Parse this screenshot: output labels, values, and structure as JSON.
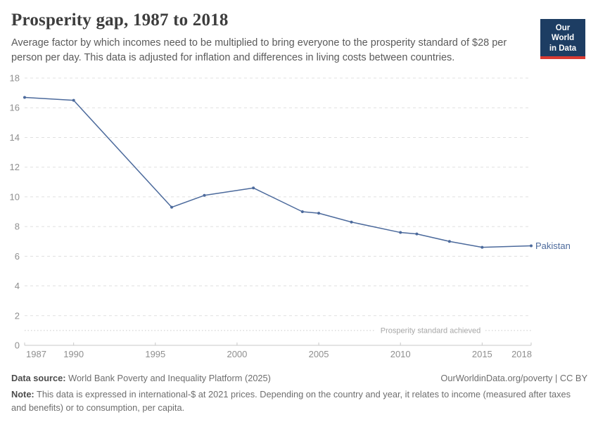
{
  "header": {
    "title": "Prosperity gap, 1987 to 2018",
    "subtitle": "Average factor by which incomes need to be multiplied to bring everyone to the prosperity standard of $28 per person per day. This data is adjusted for inflation and differences in living costs between countries."
  },
  "logo": {
    "line1": "Our World",
    "line2": "in Data",
    "bg_color": "#1d3d63",
    "accent_color": "#d93a32"
  },
  "chart_data": {
    "type": "line",
    "title": "Prosperity gap, 1987 to 2018",
    "xlabel": "",
    "ylabel": "",
    "x": [
      1987,
      1990,
      1996,
      1998,
      2001,
      2004,
      2005,
      2007,
      2010,
      2011,
      2013,
      2015,
      2018
    ],
    "series": [
      {
        "name": "Pakistan",
        "values": [
          16.7,
          16.5,
          9.3,
          10.1,
          10.6,
          9.0,
          8.9,
          8.3,
          7.6,
          7.5,
          7.0,
          6.6,
          6.7
        ],
        "color": "#4c6a9c"
      }
    ],
    "xlim": [
      1987,
      2018
    ],
    "ylim": [
      0,
      18
    ],
    "yticks": [
      0,
      2,
      4,
      6,
      8,
      10,
      12,
      14,
      16,
      18
    ],
    "xticks": [
      1987,
      1990,
      1995,
      2000,
      2005,
      2010,
      2015,
      2018
    ],
    "grid": "horizontal-dashed",
    "legend_position": "end-of-line-label",
    "annotation": {
      "label": "Prosperity standard achieved",
      "value": 1
    },
    "colors": {
      "gridline": "#e0e0e0",
      "axis": "#c8c8c8",
      "tick_label": "#8f8f8f",
      "annotation": "#a6a6a6"
    }
  },
  "footer": {
    "source_label": "Data source:",
    "source_text": "World Bank Poverty and Inequality Platform (2025)",
    "link": "OurWorldinData.org/poverty | CC BY",
    "note_label": "Note:",
    "note_text": "This data is expressed in international-$ at 2021 prices. Depending on the country and year, it relates to income (measured after taxes and benefits) or to consumption, per capita."
  }
}
